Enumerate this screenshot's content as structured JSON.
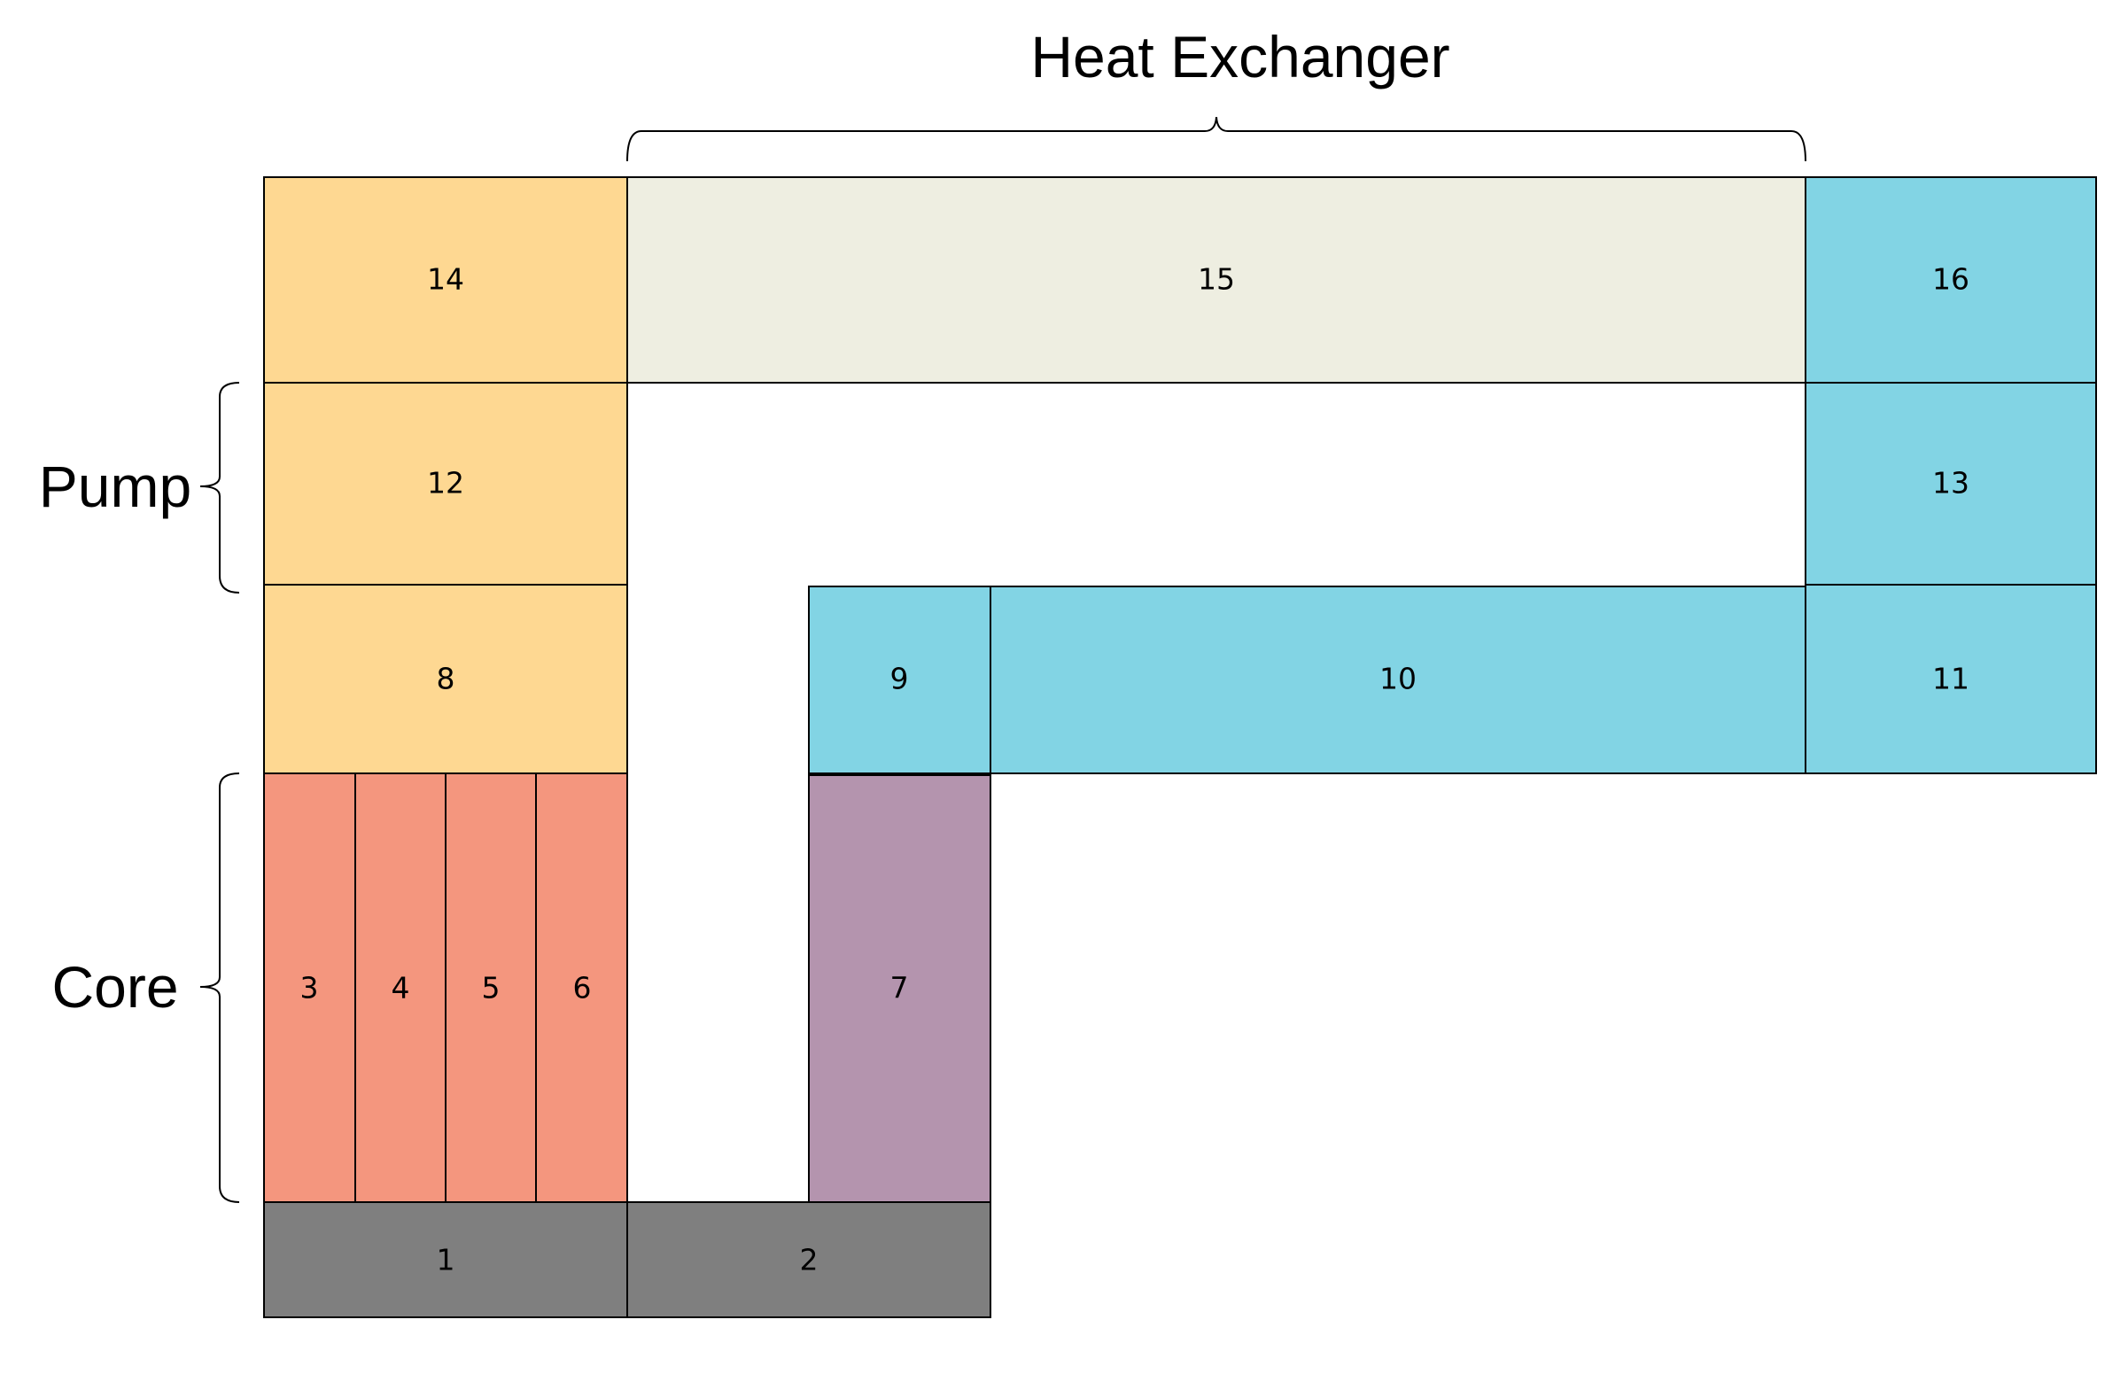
{
  "colors": {
    "orange": "#FED892",
    "beige": "#EEEEE1",
    "cyan": "#82D4E4",
    "salmon": "#F4967E",
    "purple": "#B494AE",
    "gray": "#7F7F7F"
  },
  "groups": {
    "heat_exchanger": "Heat Exchanger",
    "pump": "Pump",
    "core": "Core"
  },
  "blocks": {
    "b1": {
      "label": "1",
      "color": "gray"
    },
    "b2": {
      "label": "2",
      "color": "gray"
    },
    "b3": {
      "label": "3",
      "color": "salmon"
    },
    "b4": {
      "label": "4",
      "color": "salmon"
    },
    "b5": {
      "label": "5",
      "color": "salmon"
    },
    "b6": {
      "label": "6",
      "color": "salmon"
    },
    "b7": {
      "label": "7",
      "color": "purple"
    },
    "b8": {
      "label": "8",
      "color": "orange"
    },
    "b9": {
      "label": "9",
      "color": "cyan"
    },
    "b10": {
      "label": "10",
      "color": "cyan"
    },
    "b11": {
      "label": "11",
      "color": "cyan"
    },
    "b12": {
      "label": "12",
      "color": "orange"
    },
    "b13": {
      "label": "13",
      "color": "cyan"
    },
    "b14": {
      "label": "14",
      "color": "orange"
    },
    "b15": {
      "label": "15",
      "color": "beige"
    },
    "b16": {
      "label": "16",
      "color": "cyan"
    }
  }
}
